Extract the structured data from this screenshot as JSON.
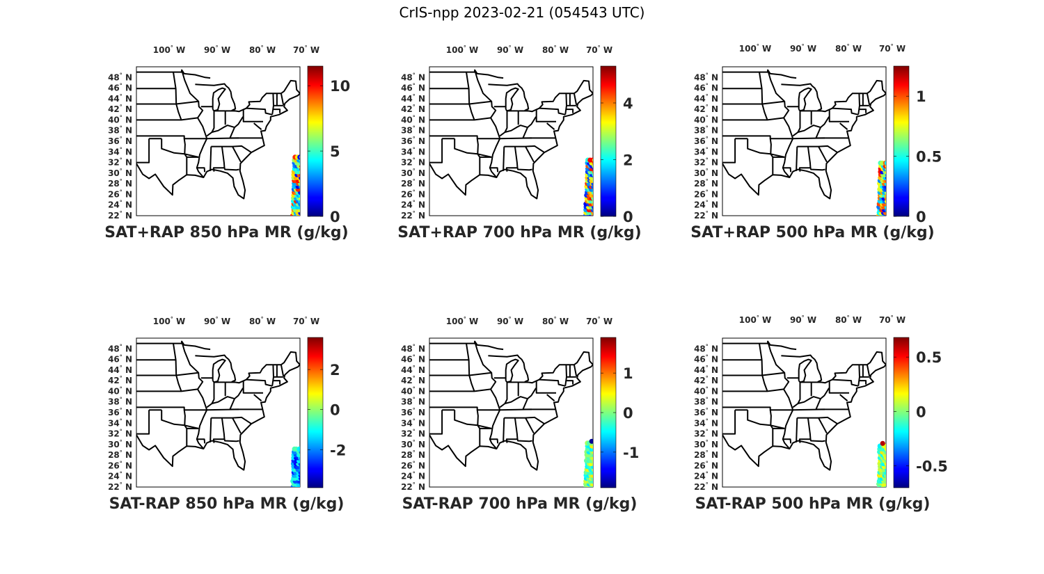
{
  "title": "CrIS-npp 2023-02-21 (054543 UTC)",
  "lon_ticks": [
    "100",
    "90",
    "80",
    "70"
  ],
  "lon_suffix": "W",
  "lat_ticks": [
    "22",
    "24",
    "26",
    "28",
    "30",
    "32",
    "34",
    "36",
    "38",
    "40",
    "42",
    "44",
    "46",
    "48"
  ],
  "lat_suffix": "N",
  "map_extent": {
    "lon": [
      -106,
      -67
    ],
    "lat": [
      22,
      50
    ]
  },
  "colormap": "jet",
  "panels": [
    {
      "label": "SAT+RAP 850 hPa MR (g/kg)",
      "clim": [
        0,
        11.5
      ],
      "cbar_ticks": [
        0,
        5,
        10
      ],
      "swath_lat": [
        22,
        33.3
      ],
      "swath_color": "mixed"
    },
    {
      "label": "SAT+RAP 700 hPa MR (g/kg)",
      "clim": [
        0,
        5.3
      ],
      "cbar_ticks": [
        0,
        2,
        4
      ],
      "swath_lat": [
        22,
        32.8
      ],
      "swath_color": "mixed"
    },
    {
      "label": "SAT+RAP 500 hPa MR (g/kg)",
      "clim": [
        0,
        1.25
      ],
      "cbar_ticks": [
        0,
        0.5,
        1
      ],
      "swath_lat": [
        22,
        32.3
      ],
      "swath_color": "mixed"
    },
    {
      "label": "SAT-RAP 850 hPa MR (g/kg)",
      "clim": [
        -3.9,
        3.6
      ],
      "cbar_ticks": [
        -2,
        0,
        2
      ],
      "swath_lat": [
        22,
        29.5
      ],
      "swath_color": "low"
    },
    {
      "label": "SAT-RAP 700 hPa MR (g/kg)",
      "clim": [
        -1.9,
        1.9
      ],
      "cbar_ticks": [
        -1,
        0,
        1
      ],
      "swath_lat": [
        22,
        30.5
      ],
      "swath_color": "mid"
    },
    {
      "label": "SAT-RAP 500 hPa MR (g/kg)",
      "clim": [
        -0.7,
        0.68
      ],
      "cbar_ticks": [
        -0.5,
        0,
        0.5
      ],
      "swath_lat": [
        22,
        30.0
      ],
      "swath_color": "mid"
    }
  ]
}
